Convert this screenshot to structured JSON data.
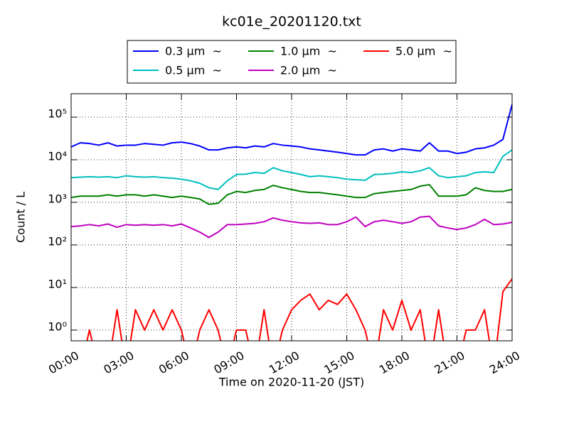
{
  "chart_data": {
    "type": "line",
    "title": "kc01e_20201120.txt",
    "x_label": "Time on 2020-11-20 (JST)",
    "y_label": "Count / L",
    "yscale": "log",
    "grid": true,
    "legend": "top",
    "x": [
      0,
      0.5,
      1,
      1.5,
      2,
      2.5,
      3,
      3.5,
      4,
      4.5,
      5,
      5.5,
      6,
      6.5,
      7,
      7.5,
      8,
      8.5,
      9,
      9.5,
      10,
      10.5,
      11,
      11.5,
      12,
      12.5,
      13,
      13.5,
      14,
      14.5,
      15,
      15.5,
      16,
      16.5,
      17,
      17.5,
      18,
      18.5,
      19,
      19.5,
      20,
      20.5,
      21,
      21.5,
      22,
      22.5,
      23,
      23.5,
      24
    ],
    "xlim": [
      0,
      24
    ],
    "xticks": [
      {
        "value": 0,
        "label": "00:00"
      },
      {
        "value": 3,
        "label": "03:00"
      },
      {
        "value": 6,
        "label": "06:00"
      },
      {
        "value": 9,
        "label": "09:00"
      },
      {
        "value": 12,
        "label": "12:00"
      },
      {
        "value": 15,
        "label": "15:00"
      },
      {
        "value": 18,
        "label": "18:00"
      },
      {
        "value": 21,
        "label": "21:00"
      },
      {
        "value": 24,
        "label": "24:00"
      }
    ],
    "ylim": [
      0.56,
      355000
    ],
    "yticks": [
      {
        "value": 1,
        "label": "10⁰"
      },
      {
        "value": 10,
        "label": "10¹"
      },
      {
        "value": 100,
        "label": "10²"
      },
      {
        "value": 1000,
        "label": "10³"
      },
      {
        "value": 10000,
        "label": "10⁴"
      },
      {
        "value": 100000,
        "label": "10⁵"
      }
    ],
    "series": [
      {
        "name": "0.3 μm  ~",
        "color": "#0000ff",
        "values": [
          20000,
          25000,
          24000,
          22000,
          25000,
          21000,
          22000,
          22000,
          24000,
          23000,
          22000,
          25000,
          26000,
          24000,
          21000,
          17000,
          17000,
          19000,
          20000,
          19000,
          21000,
          20000,
          24000,
          22000,
          21000,
          20000,
          18000,
          17000,
          16000,
          15000,
          14000,
          13000,
          13000,
          17000,
          18000,
          16000,
          18000,
          17000,
          16000,
          25000,
          16000,
          16000,
          14000,
          15000,
          18000,
          19000,
          22000,
          30000,
          200000
        ]
      },
      {
        "name": "0.5 μm  ~",
        "color": "#00bfbf",
        "values": [
          3800,
          3900,
          4000,
          3900,
          4000,
          3800,
          4200,
          4000,
          3900,
          4000,
          3800,
          3700,
          3500,
          3200,
          2800,
          2200,
          2000,
          3200,
          4500,
          4600,
          5000,
          4800,
          6500,
          5500,
          5000,
          4500,
          4000,
          4200,
          4000,
          3800,
          3500,
          3400,
          3300,
          4500,
          4600,
          4800,
          5200,
          5000,
          5500,
          6500,
          4200,
          3800,
          4000,
          4200,
          5000,
          5200,
          5000,
          12000,
          17000
        ]
      },
      {
        "name": "1.0 μm  ~",
        "color": "#008000",
        "values": [
          1300,
          1400,
          1400,
          1400,
          1500,
          1400,
          1500,
          1500,
          1400,
          1500,
          1400,
          1300,
          1400,
          1300,
          1200,
          900,
          950,
          1500,
          1800,
          1700,
          1900,
          2000,
          2500,
          2200,
          2000,
          1800,
          1700,
          1700,
          1600,
          1500,
          1400,
          1300,
          1300,
          1600,
          1700,
          1800,
          1900,
          2000,
          2400,
          2600,
          1400,
          1400,
          1400,
          1500,
          2200,
          1900,
          1800,
          1800,
          2000
        ]
      },
      {
        "name": "2.0 μm  ~",
        "color": "#bf00bf",
        "values": [
          270,
          280,
          300,
          280,
          310,
          260,
          300,
          290,
          300,
          290,
          300,
          280,
          310,
          250,
          200,
          150,
          200,
          300,
          300,
          310,
          320,
          350,
          430,
          380,
          350,
          330,
          320,
          330,
          300,
          300,
          350,
          450,
          270,
          350,
          380,
          350,
          320,
          350,
          450,
          470,
          280,
          250,
          230,
          250,
          300,
          400,
          300,
          310,
          340
        ]
      },
      {
        "name": "5.0 μm  ~",
        "color": "#ff0000",
        "values": [
          0,
          0,
          1,
          0,
          0,
          3,
          0,
          3,
          1,
          3,
          1,
          3,
          1,
          0,
          1,
          3,
          1,
          0,
          1,
          1,
          0,
          3,
          0,
          1,
          3,
          5,
          7,
          3,
          5,
          4,
          7,
          3,
          1,
          0,
          3,
          1,
          5,
          1,
          3,
          0,
          3,
          0,
          0,
          1,
          1,
          3,
          0,
          8,
          16
        ]
      }
    ]
  }
}
